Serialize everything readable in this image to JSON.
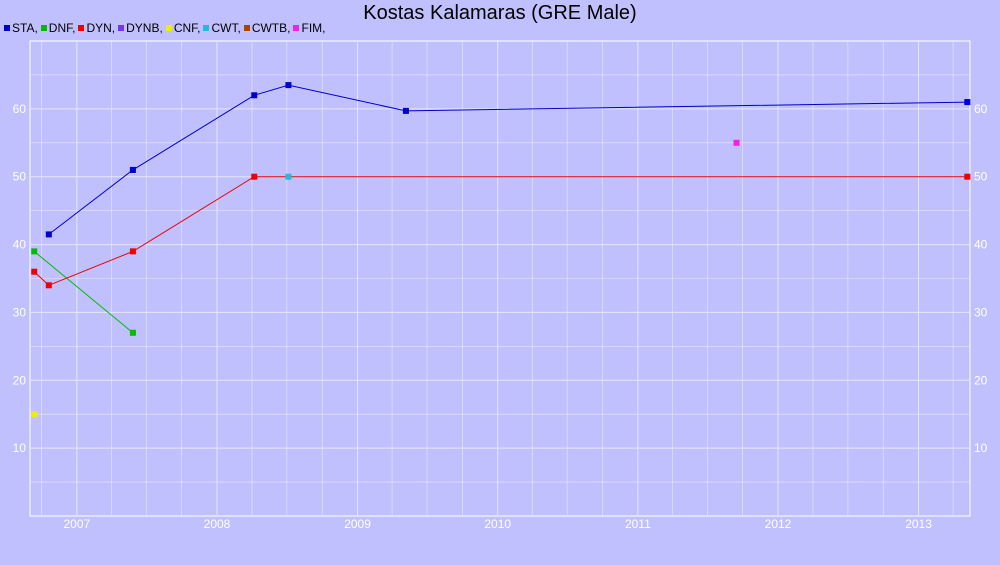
{
  "chart_data": {
    "type": "line",
    "title": "Kostas Kalamaras (GRE Male)",
    "xlabel": "",
    "ylabel": "",
    "xlim": [
      "2006-09-01",
      "2013-05-15"
    ],
    "ylim": [
      0,
      70
    ],
    "x_ticks": [
      "2007",
      "2008",
      "2009",
      "2010",
      "2011",
      "2012",
      "2013"
    ],
    "y_ticks": [
      10,
      20,
      30,
      40,
      50,
      60
    ],
    "grid": true,
    "legend_position": "top-left",
    "legend": [
      {
        "label": "STA,",
        "color": "#0000cc"
      },
      {
        "label": "DNF,",
        "color": "#00bb00"
      },
      {
        "label": "DYN,",
        "color": "#ee0000"
      },
      {
        "label": "DYNB,",
        "color": "#7733ee"
      },
      {
        "label": "CNF,",
        "color": "#eeee00"
      },
      {
        "label": "CWT,",
        "color": "#22bbdd"
      },
      {
        "label": "CWTB,",
        "color": "#aa4400"
      },
      {
        "label": "FIM,",
        "color": "#ee22ee"
      }
    ],
    "series": [
      {
        "name": "STA",
        "color": "#0000cc",
        "connect": true,
        "points": [
          [
            "2006-10-20",
            41.5
          ],
          [
            "2007-05-27",
            51
          ],
          [
            "2008-04-07",
            62
          ],
          [
            "2008-07-05",
            63.5
          ],
          [
            "2009-05-07",
            59.7
          ],
          [
            "2013-05-08",
            61
          ]
        ]
      },
      {
        "name": "DNF",
        "color": "#00bb00",
        "connect": true,
        "points": [
          [
            "2006-09-12",
            39
          ],
          [
            "2007-05-27",
            27
          ]
        ]
      },
      {
        "name": "DYN",
        "color": "#ee0000",
        "connect": true,
        "points": [
          [
            "2006-09-12",
            36
          ],
          [
            "2006-10-20",
            34
          ],
          [
            "2007-05-27",
            39
          ],
          [
            "2008-04-07",
            50
          ],
          [
            "2013-05-08",
            50
          ]
        ]
      },
      {
        "name": "CNF",
        "color": "#eeee00",
        "connect": false,
        "points": [
          [
            "2006-09-12",
            15
          ]
        ]
      },
      {
        "name": "CWT",
        "color": "#22bbdd",
        "connect": false,
        "points": [
          [
            "2008-07-05",
            50
          ]
        ]
      },
      {
        "name": "FIM",
        "color": "#ee22ee",
        "connect": false,
        "points": [
          [
            "2011-09-15",
            55
          ]
        ]
      }
    ]
  }
}
